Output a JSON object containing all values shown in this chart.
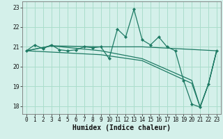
{
  "xlabel": "Humidex (Indice chaleur)",
  "bg_color": "#d4f0ea",
  "grid_color": "#aaddcc",
  "line_color": "#1e7a64",
  "xlim": [
    -0.5,
    23.5
  ],
  "ylim": [
    17.6,
    23.3
  ],
  "yticks": [
    18,
    19,
    20,
    21,
    22,
    23
  ],
  "xticks": [
    0,
    1,
    2,
    3,
    4,
    5,
    6,
    7,
    8,
    9,
    10,
    11,
    12,
    13,
    14,
    15,
    16,
    17,
    18,
    19,
    20,
    21,
    22,
    23
  ],
  "s1_x": [
    0,
    1,
    2,
    3,
    4,
    5,
    6,
    7,
    8,
    9,
    10,
    11,
    12,
    13,
    14,
    15,
    16,
    17,
    18,
    19,
    20,
    21,
    22,
    23
  ],
  "s1_y": [
    20.8,
    21.1,
    20.9,
    21.1,
    20.85,
    20.8,
    20.85,
    21.0,
    20.95,
    21.0,
    20.4,
    21.9,
    21.5,
    22.9,
    21.35,
    21.1,
    21.5,
    21.0,
    20.8,
    19.3,
    18.1,
    17.95,
    19.1,
    20.8
  ],
  "s2_x": [
    0,
    3,
    9,
    14,
    23
  ],
  "s2_y": [
    20.8,
    21.05,
    21.0,
    21.0,
    20.8
  ],
  "s3_x": [
    0,
    3,
    9,
    14,
    20,
    21,
    22,
    23
  ],
  "s3_y": [
    20.8,
    21.05,
    20.8,
    20.4,
    19.3,
    17.95,
    19.1,
    20.8
  ],
  "s4_x": [
    0,
    9,
    14,
    20,
    21,
    22,
    23
  ],
  "s4_y": [
    20.8,
    20.6,
    20.3,
    19.15,
    17.95,
    19.1,
    20.8
  ]
}
